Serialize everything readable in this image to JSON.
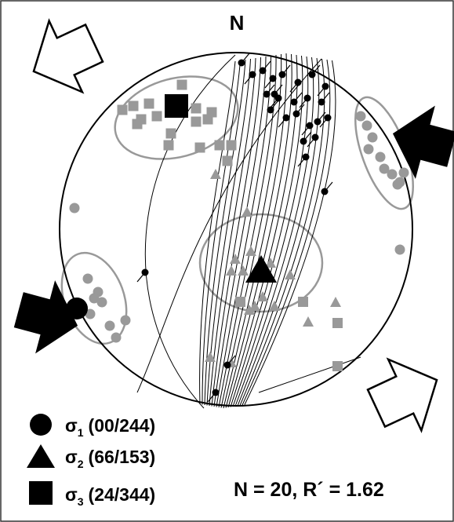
{
  "north_label": "N",
  "legend": [
    {
      "symbol": "σ",
      "subscript": "1",
      "orientation": "(00/244)"
    },
    {
      "symbol": "σ",
      "subscript": "2",
      "orientation": "(66/153)"
    },
    {
      "symbol": "σ",
      "subscript": "3",
      "orientation": "(24/344)"
    }
  ],
  "summary": "N = 20, R´ = 1.62"
}
